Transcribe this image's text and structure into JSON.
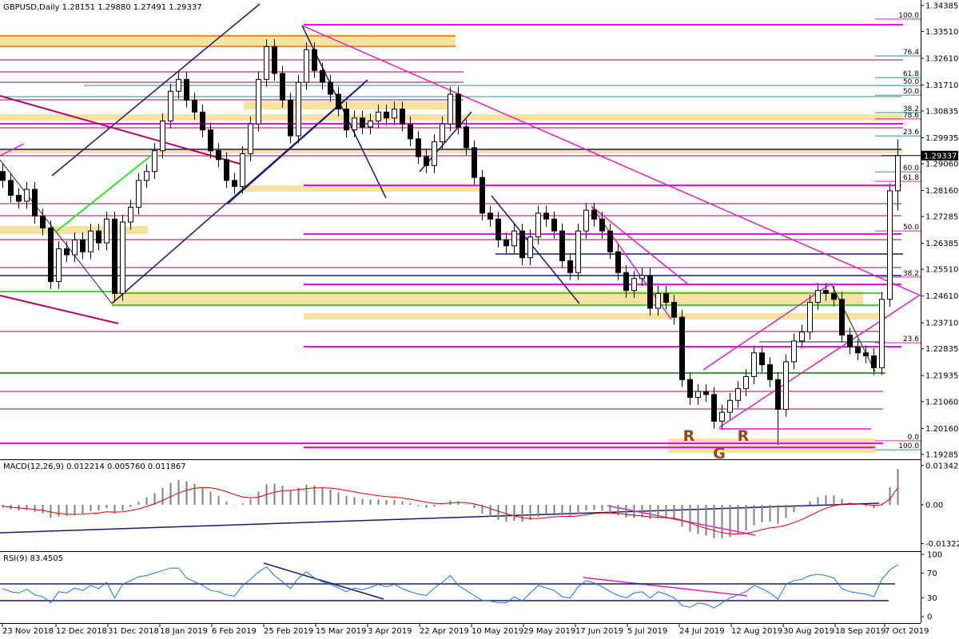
{
  "chart_data": [
    {
      "type": "candlestick",
      "title": "GBPUSD,Daily  1.28151 1.29880 1.27491 1.29337",
      "ylim": [
        1.1912,
        1.3457
      ],
      "yticks": [
        1.34385,
        {
          "value": 1.3351,
          "label": "1.33510"
        },
        {
          "value": 1.3261,
          "label": "1.32610"
        },
        {
          "value": 1.3171,
          "label": "1.31710"
        },
        1.30835,
        1.29935,
        {
          "value": 1.2906,
          "label": "1.29060"
        },
        {
          "value": 1.2816,
          "label": "1.28160"
        },
        1.27285,
        1.26385,
        {
          "value": 1.2551,
          "label": "1.25510"
        },
        {
          "value": 1.2461,
          "label": "1.24610"
        },
        {
          "value": 1.2371,
          "label": "1.23710"
        },
        1.22835,
        1.21935,
        {
          "value": 1.2106,
          "label": "1.21060"
        },
        {
          "value": 1.2016,
          "label": "1.20160"
        },
        1.19285
      ],
      "up_color": "#ffffff",
      "down_color": "#000000",
      "outline_color": "#000000",
      "ohlc": {
        "open": [
          1.288,
          1.285,
          1.28,
          1.278,
          1.282,
          1.273,
          1.269,
          1.251,
          1.262,
          1.26,
          1.265,
          1.261,
          1.268,
          1.264,
          1.272,
          1.247,
          1.271,
          1.276,
          1.285,
          1.288,
          1.295,
          1.305,
          1.315,
          1.319,
          1.312,
          1.308,
          1.302,
          1.295,
          1.292,
          1.285,
          1.283,
          1.294,
          1.304,
          1.319,
          1.33,
          1.321,
          1.312,
          1.3,
          1.318,
          1.329,
          1.322,
          1.318,
          1.314,
          1.309,
          1.302,
          1.306,
          1.303,
          1.305,
          1.308,
          1.306,
          1.309,
          1.304,
          1.299,
          1.293,
          1.29,
          1.298,
          1.304,
          1.314,
          1.303,
          1.296,
          1.286,
          1.274,
          1.272,
          1.265,
          1.263,
          1.268,
          1.259,
          1.266,
          1.274,
          1.272,
          1.268,
          1.258,
          1.254,
          1.268,
          1.275,
          1.272,
          1.268,
          1.261,
          1.254,
          1.248,
          1.252,
          1.253,
          1.242,
          1.247,
          1.244,
          1.239,
          1.218,
          1.212,
          1.214,
          1.213,
          1.204,
          1.207,
          1.211,
          1.215,
          1.219,
          1.227,
          1.223,
          1.218,
          1.208,
          1.224,
          1.231,
          1.234,
          1.244,
          1.248,
          1.247,
          1.245,
          1.233,
          1.229,
          1.227,
          1.226,
          1.222,
          1.245,
          1.28151
        ],
        "high": [
          1.2905,
          1.2875,
          1.2825,
          1.2845,
          1.2845,
          1.2755,
          1.2715,
          1.2645,
          1.2645,
          1.2675,
          1.2675,
          1.2705,
          1.2705,
          1.2745,
          1.2745,
          1.2735,
          1.2785,
          1.2875,
          1.2905,
          1.2975,
          1.3075,
          1.3175,
          1.3215,
          1.3215,
          1.3145,
          1.3105,
          1.3045,
          1.2975,
          1.2945,
          1.2875,
          1.2965,
          1.3065,
          1.3215,
          1.3325,
          1.3325,
          1.3235,
          1.3145,
          1.3205,
          1.3315,
          1.3315,
          1.3245,
          1.3205,
          1.3165,
          1.3115,
          1.3085,
          1.3085,
          1.3075,
          1.3105,
          1.3105,
          1.3115,
          1.3115,
          1.3065,
          1.3015,
          1.2955,
          1.3005,
          1.3065,
          1.3165,
          1.3165,
          1.3055,
          1.2985,
          1.2885,
          1.2765,
          1.2745,
          1.2675,
          1.2705,
          1.2705,
          1.2685,
          1.2765,
          1.2765,
          1.2745,
          1.2705,
          1.2605,
          1.2705,
          1.2775,
          1.2775,
          1.2745,
          1.2705,
          1.2635,
          1.2565,
          1.2545,
          1.2555,
          1.2555,
          1.2495,
          1.2495,
          1.2465,
          1.2415,
          1.2205,
          1.2165,
          1.2165,
          1.2155,
          1.2095,
          1.2135,
          1.2175,
          1.2215,
          1.2295,
          1.2295,
          1.2255,
          1.2205,
          1.2265,
          1.2335,
          1.2365,
          1.2465,
          1.2505,
          1.2505,
          1.2495,
          1.2475,
          1.2355,
          1.2315,
          1.2295,
          1.2285,
          1.2475,
          1.284,
          1.2988
        ],
        "low": [
          1.2825,
          1.2775,
          1.2755,
          1.2755,
          1.2705,
          1.2665,
          1.2485,
          1.2485,
          1.2575,
          1.2575,
          1.2585,
          1.2585,
          1.2615,
          1.2615,
          1.2445,
          1.2445,
          1.2685,
          1.2735,
          1.2825,
          1.2855,
          1.2925,
          1.3025,
          1.3125,
          1.3095,
          1.3055,
          1.2995,
          1.2925,
          1.2895,
          1.2825,
          1.2805,
          1.2805,
          1.2915,
          1.3015,
          1.3165,
          1.3185,
          1.3095,
          1.2975,
          1.2975,
          1.3155,
          1.3195,
          1.3155,
          1.3115,
          1.3065,
          1.2995,
          1.2995,
          1.3005,
          1.3005,
          1.3025,
          1.3035,
          1.3035,
          1.3015,
          1.2965,
          1.2905,
          1.2875,
          1.2875,
          1.2955,
          1.3015,
          1.3005,
          1.2935,
          1.2835,
          1.2715,
          1.2695,
          1.2625,
          1.2605,
          1.2605,
          1.2565,
          1.2565,
          1.2635,
          1.2695,
          1.2655,
          1.2555,
          1.2515,
          1.2515,
          1.2655,
          1.2695,
          1.2655,
          1.2585,
          1.2515,
          1.2455,
          1.2455,
          1.2495,
          1.2395,
          1.2395,
          1.2415,
          1.2365,
          1.2155,
          1.2095,
          1.2095,
          1.2105,
          1.2015,
          1.2015,
          1.2045,
          1.2085,
          1.2125,
          1.2165,
          1.2205,
          1.2155,
          1.196,
          1.2055,
          1.2215,
          1.2285,
          1.2315,
          1.2415,
          1.2445,
          1.2425,
          1.2305,
          1.2265,
          1.2245,
          1.2235,
          1.2195,
          1.2195,
          1.2425,
          1.27491
        ],
        "close": [
          1.285,
          1.28,
          1.278,
          1.282,
          1.273,
          1.269,
          1.251,
          1.262,
          1.26,
          1.265,
          1.261,
          1.268,
          1.264,
          1.272,
          1.247,
          1.271,
          1.276,
          1.285,
          1.288,
          1.295,
          1.305,
          1.315,
          1.319,
          1.312,
          1.308,
          1.302,
          1.295,
          1.292,
          1.285,
          1.283,
          1.294,
          1.304,
          1.319,
          1.33,
          1.321,
          1.312,
          1.3,
          1.318,
          1.329,
          1.322,
          1.318,
          1.314,
          1.309,
          1.302,
          1.306,
          1.303,
          1.305,
          1.308,
          1.306,
          1.309,
          1.304,
          1.299,
          1.293,
          1.29,
          1.298,
          1.304,
          1.314,
          1.303,
          1.296,
          1.286,
          1.274,
          1.272,
          1.265,
          1.263,
          1.268,
          1.259,
          1.266,
          1.274,
          1.272,
          1.268,
          1.258,
          1.254,
          1.268,
          1.275,
          1.272,
          1.268,
          1.261,
          1.254,
          1.248,
          1.252,
          1.253,
          1.242,
          1.247,
          1.244,
          1.239,
          1.218,
          1.212,
          1.214,
          1.213,
          1.204,
          1.207,
          1.211,
          1.215,
          1.219,
          1.227,
          1.223,
          1.218,
          1.208,
          1.224,
          1.231,
          1.234,
          1.244,
          1.248,
          1.247,
          1.245,
          1.233,
          1.229,
          1.227,
          1.226,
          1.222,
          1.245,
          1.28151,
          1.29337
        ]
      },
      "fib_levels": [
        {
          "value": 1.3393,
          "label": "100.0",
          "color": "#e020c0"
        },
        {
          "value": 1.3269,
          "label": "76.4",
          "color": "#2f8f8f"
        },
        {
          "value": 1.3196,
          "label": "61.8",
          "color": "#2f8f8f"
        },
        {
          "value": 1.3169,
          "label": "50.0",
          "color": "#2f8f8f"
        },
        {
          "value": 1.3137,
          "label": "50.0",
          "color": "#2f8f8f"
        },
        {
          "value": 1.3078,
          "label": "38.2",
          "color": "#2f8f8f"
        },
        {
          "value": 1.3057,
          "label": "78.6",
          "color": "#e020c0"
        },
        {
          "value": 1.3,
          "label": "23.6",
          "color": "#2f8f8f"
        },
        {
          "value": 1.2879,
          "label": "60.0",
          "color": "#2f8f8f"
        },
        {
          "value": 1.2847,
          "label": "61.8",
          "color": "#e020c0"
        },
        {
          "value": 1.268,
          "label": "50.0",
          "color": "#e020c0"
        },
        {
          "value": 1.2525,
          "label": "38.2",
          "color": "#e020c0"
        },
        {
          "value": 1.2304,
          "label": "23.6",
          "color": "#e020c0"
        },
        {
          "value": 1.1974,
          "label": "0.0",
          "color": "#e020c0"
        },
        {
          "value": 1.1944,
          "label": "100.0",
          "color": "#2f8f8f"
        }
      ],
      "annotations": [
        "R",
        "G",
        "R"
      ]
    },
    {
      "type": "macd",
      "title": "MACD(12,26,9) 0.012214 0.005760 0.011867",
      "ylim": [
        -0.0153,
        0.015
      ],
      "yticks": [
        0.013425,
        {
          "value": 0,
          "label": "0.00"
        },
        -0.013223
      ],
      "histogram_color": "#808080",
      "signal_color": "#e00000",
      "histogram": [
        -0.001,
        -0.0015,
        -0.002,
        -0.0018,
        -0.0025,
        -0.003,
        -0.0045,
        -0.004,
        -0.0038,
        -0.0032,
        -0.003,
        -0.0022,
        -0.002,
        -0.0012,
        -0.003,
        -0.002,
        -0.0008,
        0.001,
        0.0025,
        0.004,
        0.0058,
        0.0075,
        0.0085,
        0.008,
        0.0072,
        0.006,
        0.0045,
        0.003,
        0.0012,
        0.0,
        0.0005,
        0.002,
        0.0045,
        0.007,
        0.0072,
        0.0065,
        0.005,
        0.0058,
        0.0068,
        0.0066,
        0.006,
        0.0052,
        0.0042,
        0.003,
        0.0026,
        0.002,
        0.0018,
        0.0018,
        0.0016,
        0.0017,
        0.0012,
        0.0005,
        -0.0004,
        -0.001,
        -0.0006,
        0.0002,
        0.0015,
        0.0012,
        0.0002,
        -0.0012,
        -0.003,
        -0.0042,
        -0.0052,
        -0.0058,
        -0.0055,
        -0.0058,
        -0.0052,
        -0.004,
        -0.0032,
        -0.003,
        -0.0036,
        -0.004,
        -0.003,
        -0.002,
        -0.0018,
        -0.002,
        -0.0028,
        -0.0036,
        -0.0044,
        -0.0045,
        -0.0042,
        -0.0048,
        -0.0046,
        -0.0048,
        -0.0052,
        -0.0075,
        -0.0092,
        -0.01,
        -0.0105,
        -0.0115,
        -0.0115,
        -0.011,
        -0.01,
        -0.0088,
        -0.007,
        -0.006,
        -0.0058,
        -0.0065,
        -0.0045,
        -0.0025,
        -0.0008,
        0.0012,
        0.0026,
        0.0032,
        0.0032,
        0.002,
        0.0008,
        0.0,
        -0.0006,
        -0.0012,
        0.0005,
        0.006,
        0.0122
      ],
      "signal": [
        -0.0005,
        -0.0008,
        -0.0011,
        -0.0013,
        -0.0016,
        -0.0019,
        -0.0025,
        -0.0029,
        -0.0032,
        -0.0033,
        -0.0032,
        -0.003,
        -0.0028,
        -0.0024,
        -0.0025,
        -0.0024,
        -0.002,
        -0.0014,
        -0.0006,
        0.0004,
        0.0015,
        0.0028,
        0.004,
        0.005,
        0.0056,
        0.0059,
        0.0058,
        0.0053,
        0.0045,
        0.0035,
        0.0027,
        0.0024,
        0.0026,
        0.0035,
        0.0043,
        0.0048,
        0.0049,
        0.0052,
        0.0055,
        0.0058,
        0.0058,
        0.0057,
        0.0054,
        0.0049,
        0.0044,
        0.0039,
        0.0035,
        0.0031,
        0.0028,
        0.0026,
        0.0023,
        0.0019,
        0.0014,
        0.0009,
        0.0005,
        0.0004,
        0.0006,
        0.0008,
        0.0007,
        0.0003,
        -0.0004,
        -0.0013,
        -0.0022,
        -0.0031,
        -0.0038,
        -0.0044,
        -0.0047,
        -0.0047,
        -0.0044,
        -0.0041,
        -0.004,
        -0.004,
        -0.0038,
        -0.0034,
        -0.003,
        -0.0028,
        -0.0028,
        -0.003,
        -0.0033,
        -0.0036,
        -0.0038,
        -0.0041,
        -0.0043,
        -0.0044,
        -0.0046,
        -0.0053,
        -0.0062,
        -0.0072,
        -0.008,
        -0.0088,
        -0.0095,
        -0.0099,
        -0.01,
        -0.0098,
        -0.0092,
        -0.0085,
        -0.0079,
        -0.0076,
        -0.007,
        -0.0061,
        -0.005,
        -0.0037,
        -0.0024,
        -0.0012,
        -0.0003,
        0.0002,
        0.0004,
        0.0003,
        0.0001,
        -0.0002,
        0.0,
        0.002,
        0.0058
      ]
    },
    {
      "type": "rsi",
      "title": "RSI(9) 83.4505",
      "ylim": [
        -7.7,
        102.6
      ],
      "yticks": [
        100,
        70,
        30,
        0
      ],
      "color": "#1e73d2",
      "values": [
        45,
        40,
        38,
        44,
        35,
        32,
        22,
        40,
        38,
        46,
        42,
        50,
        45,
        55,
        30,
        52,
        58,
        64,
        66,
        70,
        74,
        78,
        78,
        62,
        56,
        50,
        42,
        40,
        35,
        33,
        50,
        60,
        72,
        80,
        66,
        56,
        45,
        62,
        72,
        62,
        56,
        52,
        46,
        40,
        46,
        43,
        47,
        52,
        48,
        52,
        45,
        40,
        36,
        34,
        46,
        55,
        66,
        50,
        42,
        34,
        26,
        25,
        22,
        22,
        32,
        25,
        38,
        50,
        46,
        42,
        32,
        30,
        48,
        58,
        54,
        48,
        40,
        34,
        30,
        38,
        40,
        30,
        40,
        36,
        30,
        18,
        15,
        22,
        20,
        14,
        22,
        30,
        35,
        40,
        50,
        45,
        38,
        28,
        52,
        58,
        60,
        66,
        68,
        66,
        62,
        45,
        40,
        38,
        36,
        32,
        60,
        75,
        83.4505
      ],
      "xticks": [
        {
          "value": 0,
          "label": "23 Nov 2018"
        },
        {
          "value": 6.7,
          "label": "12 Dec 2018"
        },
        {
          "value": 13.2,
          "label": "31 Dec 2018"
        },
        {
          "value": 19.7,
          "label": "18 Jan 2019"
        },
        {
          "value": 26.2,
          "label": "6 Feb 2019"
        },
        {
          "value": 32.7,
          "label": "25 Feb 2019"
        },
        {
          "value": 39.2,
          "label": "15 Mar 2019"
        },
        {
          "value": 45.7,
          "label": "3 Apr 2019"
        },
        {
          "value": 52.2,
          "label": "22 Apr 2019"
        },
        {
          "value": 58.7,
          "label": "10 May 2019"
        },
        {
          "value": 65.2,
          "label": "29 May 2019"
        },
        {
          "value": 71.7,
          "label": "17 Jun 2019"
        },
        {
          "value": 78.2,
          "label": "5 Jul 2019"
        },
        {
          "value": 84.7,
          "label": "24 Jul 2019"
        },
        {
          "value": 91.2,
          "label": "12 Aug 2019"
        },
        {
          "value": 97.7,
          "label": "30 Aug 2019"
        },
        {
          "value": 104.2,
          "label": "18 Sep 2019"
        },
        {
          "value": 110.4,
          "label": "7 Oct 2019"
        }
      ]
    }
  ]
}
